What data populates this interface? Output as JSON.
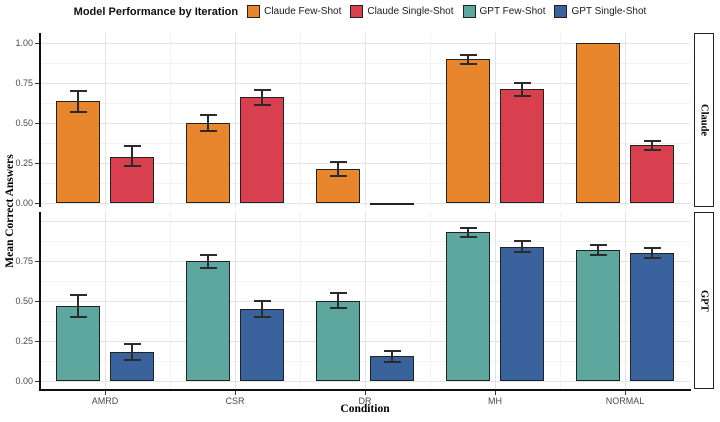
{
  "legend": {
    "title": "Model Performance by Iteration",
    "items": [
      {
        "label": "Claude Few-Shot",
        "color": "#E8862D"
      },
      {
        "label": "Claude Single-Shot",
        "color": "#D8404F"
      },
      {
        "label": "GPT Few-Shot",
        "color": "#5DA79E"
      },
      {
        "label": "GPT Single-Shot",
        "color": "#3A639E"
      }
    ]
  },
  "chart_data": {
    "type": "bar",
    "title": "Model Performance by Iteration",
    "xlabel": "Condition",
    "ylabel": "Mean Correct Answers",
    "categories": [
      "AMRD",
      "CSR",
      "DR",
      "MH",
      "NORMAL"
    ],
    "ylim": [
      0,
      1
    ],
    "grid": true,
    "legend_position": "top",
    "error_bars": true,
    "facets": [
      {
        "label": "Claude",
        "yticks": [
          "1.00",
          "0.75",
          "0.50",
          "0.25",
          "0.00"
        ],
        "series": [
          {
            "name": "Claude Few-Shot",
            "color": "#E8862D",
            "values": [
              0.64,
              0.5,
              0.21,
              0.9,
              1.0
            ],
            "err_low": [
              0.57,
              0.45,
              0.17,
              0.87,
              1.0
            ],
            "err_high": [
              0.7,
              0.55,
              0.255,
              0.925,
              1.0
            ]
          },
          {
            "name": "Claude Single-Shot",
            "color": "#D8404F",
            "values": [
              0.29,
              0.66,
              0.0,
              0.71,
              0.36
            ],
            "err_low": [
              0.23,
              0.61,
              0.0,
              0.67,
              0.33
            ],
            "err_high": [
              0.355,
              0.705,
              0.0,
              0.75,
              0.39
            ]
          }
        ]
      },
      {
        "label": "GPT",
        "yticks": [
          "0.75",
          "0.50",
          "0.25",
          "0.00"
        ],
        "series": [
          {
            "name": "GPT Few-Shot",
            "color": "#5DA79E",
            "values": [
              0.47,
              0.75,
              0.5,
              0.93,
              0.82
            ],
            "err_low": [
              0.4,
              0.705,
              0.455,
              0.9,
              0.79
            ],
            "err_high": [
              0.54,
              0.79,
              0.55,
              0.955,
              0.85
            ]
          },
          {
            "name": "GPT Single-Shot",
            "color": "#3A639E",
            "values": [
              0.18,
              0.45,
              0.155,
              0.84,
              0.8
            ],
            "err_low": [
              0.13,
              0.4,
              0.12,
              0.805,
              0.77
            ],
            "err_high": [
              0.23,
              0.5,
              0.19,
              0.875,
              0.83
            ]
          }
        ]
      }
    ]
  }
}
